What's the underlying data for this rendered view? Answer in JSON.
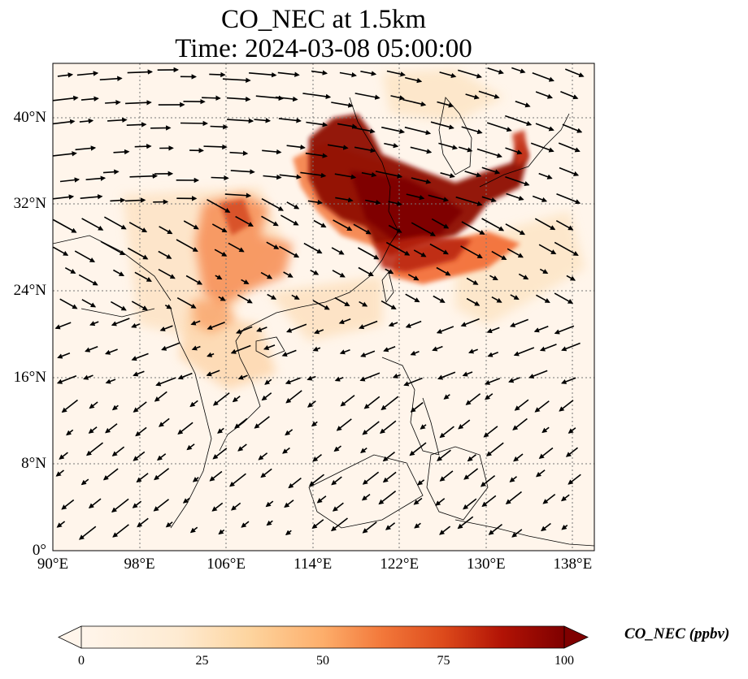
{
  "title": "CO_NEC at 1.5km",
  "subtitle": "Time: 2024-03-08 05:00:00",
  "map": {
    "lon_range": [
      90,
      140
    ],
    "lat_range": [
      0,
      45
    ],
    "lat_ticks": [
      {
        "value": 0,
        "label": "0°"
      },
      {
        "value": 8,
        "label": "8°N"
      },
      {
        "value": 16,
        "label": "16°N"
      },
      {
        "value": 24,
        "label": "24°N"
      },
      {
        "value": 32,
        "label": "32°N"
      },
      {
        "value": 40,
        "label": "40°N"
      }
    ],
    "lon_ticks": [
      {
        "value": 90,
        "label": "90°E"
      },
      {
        "value": 98,
        "label": "98°E"
      },
      {
        "value": 106,
        "label": "106°E"
      },
      {
        "value": 114,
        "label": "114°E"
      },
      {
        "value": 122,
        "label": "122°E"
      },
      {
        "value": 130,
        "label": "130°E"
      },
      {
        "value": 138,
        "label": "138°E"
      }
    ],
    "gridlines": true,
    "vectors": "wind arrows",
    "colormap": [
      "#fff5eb",
      "#fdd49e",
      "#fdae6b",
      "#f16913",
      "#d94801",
      "#a63603",
      "#7f0000"
    ]
  },
  "colorbar": {
    "label": "CO_NEC (ppbv)",
    "ticks": [
      {
        "value": 0,
        "label": "0"
      },
      {
        "value": 25,
        "label": "25"
      },
      {
        "value": 50,
        "label": "50"
      },
      {
        "value": 75,
        "label": "75"
      },
      {
        "value": 100,
        "label": "100"
      }
    ],
    "range": [
      0,
      100
    ],
    "extend": "both"
  }
}
